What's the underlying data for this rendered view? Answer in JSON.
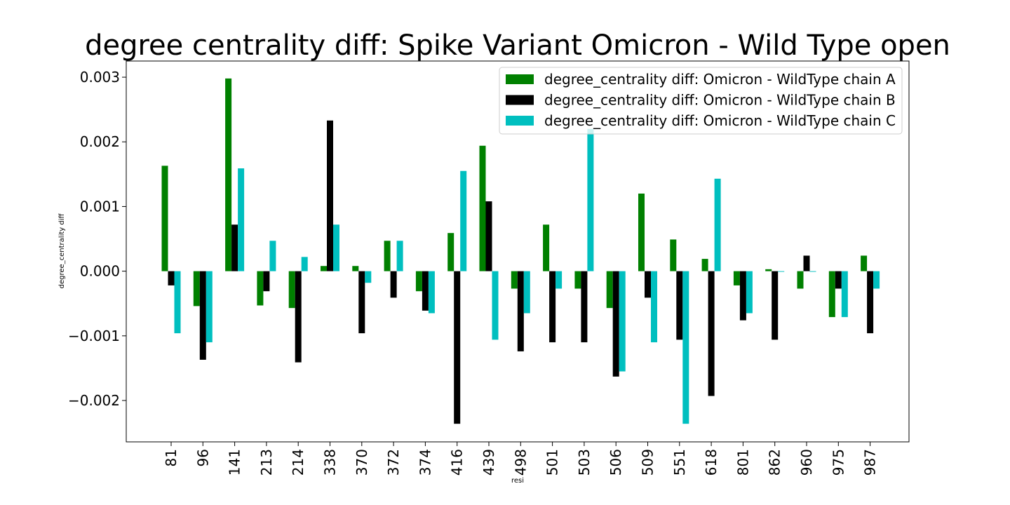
{
  "chart_data": {
    "type": "bar",
    "title": "degree centrality diff: Spike Variant Omicron - Wild Type open",
    "xlabel": "resi",
    "ylabel": "degree_centrality diff",
    "ylim": [
      -0.00264,
      0.00325
    ],
    "yticks": [
      -0.002,
      -0.001,
      0.0,
      0.001,
      0.002,
      0.003
    ],
    "ytick_labels": [
      "−0.002",
      "−0.001",
      "0.000",
      "0.001",
      "0.002",
      "0.003"
    ],
    "grid": false,
    "legend_placement": "top-right",
    "categories": [
      "81",
      "96",
      "141",
      "213",
      "214",
      "338",
      "370",
      "372",
      "374",
      "416",
      "439",
      "498",
      "501",
      "503",
      "506",
      "509",
      "551",
      "618",
      "801",
      "862",
      "960",
      "975",
      "987"
    ],
    "series": [
      {
        "name": "degree_centrality diff: Omicron - WildType chain A",
        "color": "#008000",
        "values": [
          0.00163,
          -0.00054,
          0.00298,
          -0.00053,
          -0.00057,
          8e-05,
          8e-05,
          0.00047,
          -0.00031,
          0.00059,
          0.00194,
          -0.00027,
          0.00072,
          -0.00027,
          -0.00057,
          0.0012,
          0.00049,
          0.00019,
          -0.00022,
          3e-05,
          -0.00027,
          -0.00071,
          0.00024
        ]
      },
      {
        "name": "degree_centrality diff: Omicron - WildType chain B",
        "color": "#000000",
        "values": [
          -0.00022,
          -0.00137,
          0.00072,
          -0.00031,
          -0.00141,
          0.00233,
          -0.00096,
          -0.00041,
          -0.00061,
          -0.00236,
          0.00108,
          -0.00124,
          -0.0011,
          -0.0011,
          -0.00163,
          -0.00041,
          -0.00106,
          -0.00193,
          -0.00076,
          -0.00106,
          0.00024,
          -0.00027,
          -0.00096
        ]
      },
      {
        "name": "degree_centrality diff: Omicron - WildType chain C",
        "color": "#00bfbf",
        "values": [
          -0.00096,
          -0.0011,
          0.00159,
          0.00047,
          0.00022,
          0.00072,
          -0.00018,
          0.00047,
          -0.00065,
          0.00155,
          -0.00106,
          -0.00065,
          -0.00027,
          0.0022,
          -0.00155,
          -0.0011,
          -0.00236,
          0.00143,
          -0.00065,
          -1e-05,
          -1e-05,
          -0.00071,
          -0.00027
        ]
      }
    ]
  }
}
